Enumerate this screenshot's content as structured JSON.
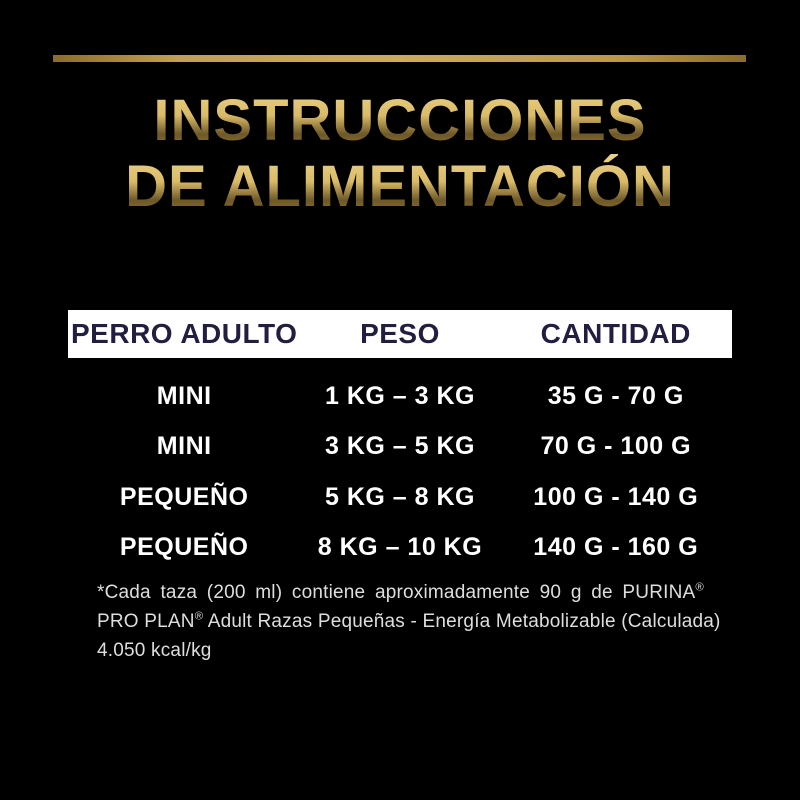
{
  "colors": {
    "background": "#000000",
    "gold_line": "#c2a052",
    "title_gold_light": "#ecd489",
    "title_gold_dark": "#9c7b33",
    "header_bg": "#ffffff",
    "header_text": "#221e3f",
    "row_text": "#ffffff",
    "footnote_text": "#dedede"
  },
  "title": {
    "line1": "INSTRUCCIONES",
    "line2": "DE ALIMENTACIÓN"
  },
  "table": {
    "headers": [
      "PERRO ADULTO",
      "PESO",
      "CANTIDAD"
    ],
    "rows": [
      {
        "breed": "MINI",
        "weight": "1 KG – 3 KG",
        "amount": "35 G - 70 G"
      },
      {
        "breed": "MINI",
        "weight": "3 KG – 5 KG",
        "amount": "70 G - 100 G"
      },
      {
        "breed": "PEQUEÑO",
        "weight": "5 KG – 8 KG",
        "amount": "100 G - 140 G"
      },
      {
        "breed": "PEQUEÑO",
        "weight": "8 KG – 10 KG",
        "amount": "140 G - 160 G"
      }
    ]
  },
  "footnote": {
    "lines": [
      "*Cada taza (200 ml) contiene aproximadamente 90 g de PURINA®",
      "PRO PLAN® Adult Razas Pequeñas - Energía Metabolizable (Calculada)",
      "4.050 kcal/kg"
    ]
  }
}
